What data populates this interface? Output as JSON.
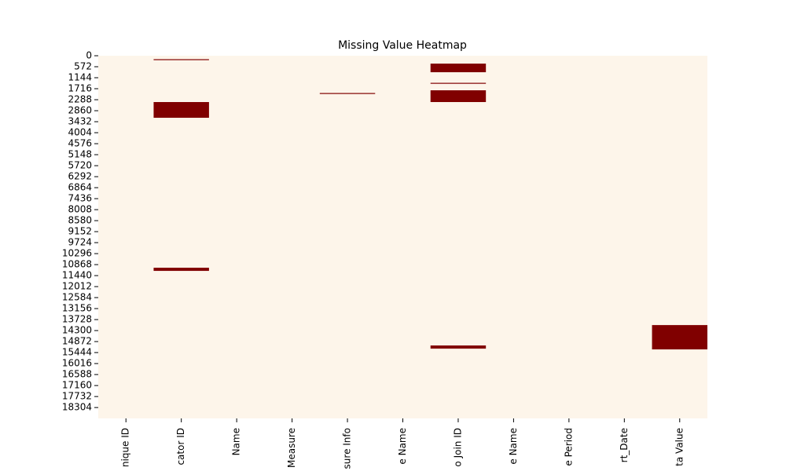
{
  "chart_data": {
    "type": "heatmap",
    "title": "Missing Value Heatmap",
    "categories": [
      "nique ID",
      "cator ID",
      "Name",
      "Measure",
      "sure Info",
      "e Name",
      "o Join ID",
      "e Name",
      "e Period",
      "rt_Date",
      "ta Value"
    ],
    "missing": [
      [],
      [
        [
          180,
          220
        ],
        [
          2410,
          3228
        ],
        [
          11031,
          11194
        ]
      ],
      [],
      [],
      [
        [
          1940,
          1980
        ]
      ],
      [],
      [
        [
          409,
          858
        ],
        [
          1410,
          1450
        ],
        [
          1798,
          2410
        ],
        [
          15076,
          15240
        ]
      ],
      [],
      [],
      [],
      [
        [
          14014,
          15280
        ]
      ]
    ],
    "colors": [
      "#fdf5ea",
      "#800000"
    ],
    "ylim": [
      0,
      18870
    ],
    "yticks": [
      0,
      572,
      1144,
      1716,
      2288,
      2860,
      3432,
      4004,
      4576,
      5148,
      5720,
      6292,
      6864,
      7436,
      8008,
      8580,
      9152,
      9724,
      10296,
      10868,
      11440,
      12012,
      12584,
      13156,
      13728,
      14300,
      14872,
      15444,
      16016,
      16588,
      17160,
      17732,
      18304
    ]
  }
}
